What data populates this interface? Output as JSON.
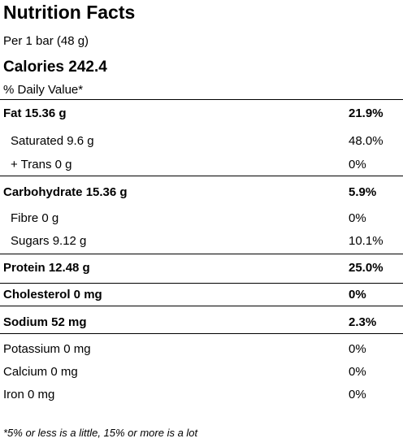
{
  "title": "Nutrition Facts",
  "serving": "Per 1 bar (48 g)",
  "calories": "Calories 242.4",
  "dv_header": "% Daily Value*",
  "rows": [
    {
      "name": "Fat 15.36 g",
      "pct": "21.9%",
      "bold": true
    },
    {
      "name": "Saturated 9.6 g",
      "pct": "48.0%",
      "bold": false
    },
    {
      "name": "+ Trans 0 g",
      "pct": "0%",
      "bold": false
    },
    {
      "name": "Carbohydrate 15.36 g",
      "pct": "5.9%",
      "bold": true
    },
    {
      "name": "Fibre 0 g",
      "pct": "0%",
      "bold": false
    },
    {
      "name": "Sugars 9.12 g",
      "pct": "10.1%",
      "bold": false
    },
    {
      "name": "Protein 12.48 g",
      "pct": "25.0%",
      "bold": true
    },
    {
      "name": "Cholesterol 0 mg",
      "pct": "0%",
      "bold": true
    },
    {
      "name": "Sodium 52 mg",
      "pct": "2.3%",
      "bold": true
    },
    {
      "name": "Potassium 0 mg",
      "pct": "0%",
      "bold": false
    },
    {
      "name": "Calcium 0 mg",
      "pct": "0%",
      "bold": false
    },
    {
      "name": "Iron 0 mg",
      "pct": "0%",
      "bold": false
    }
  ],
  "footnote": "*5% or less is a little, 15% or more is a lot"
}
